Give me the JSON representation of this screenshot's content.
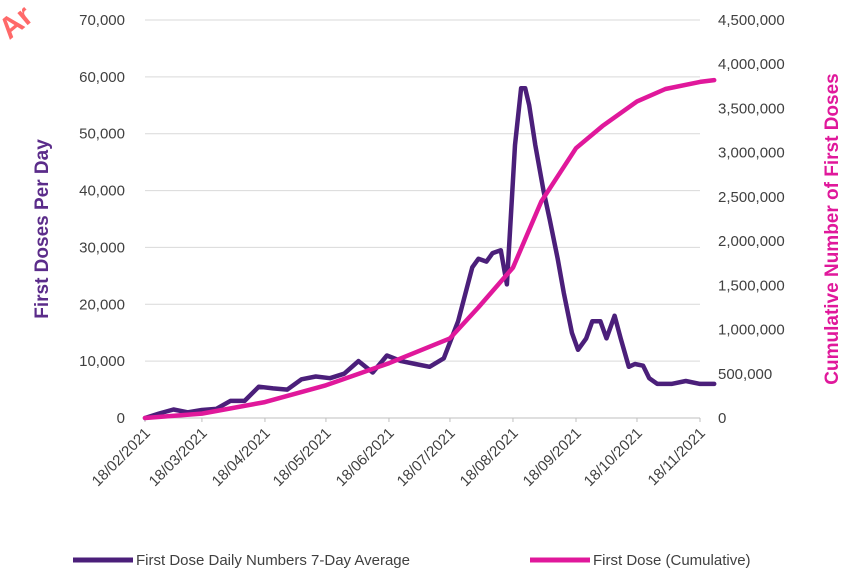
{
  "watermark": "Ar",
  "chart_data": {
    "type": "line",
    "x_tick_labels": [
      "18/02/2021",
      "18/03/2021",
      "18/04/2021",
      "18/05/2021",
      "18/06/2021",
      "18/07/2021",
      "18/08/2021",
      "18/09/2021",
      "18/10/2021",
      "18/11/2021"
    ],
    "x_range": [
      "2021-02-18",
      "2021-11-18"
    ],
    "left_axis": {
      "label": "First Doses Per Day",
      "ylim": [
        0,
        70000
      ],
      "ticks": [
        "0",
        "10,000",
        "20,000",
        "30,000",
        "40,000",
        "50,000",
        "60,000",
        "70,000"
      ],
      "color": "#5b2c8a"
    },
    "right_axis": {
      "label": "Cumulative Number of First Doses",
      "ylim": [
        0,
        4500000
      ],
      "ticks": [
        "0",
        "500,000",
        "1,000,000",
        "1,500,000",
        "2,000,000",
        "2,500,000",
        "3,000,000",
        "3,500,000",
        "4,000,000",
        "4,500,000"
      ],
      "color": "#e0189b"
    },
    "grid": true,
    "legend_position": "bottom",
    "series": [
      {
        "name": "First Dose Daily Numbers 7-Day Average",
        "axis": "left",
        "color": "#4b1f7a",
        "x": [
          "2021-02-18",
          "2021-02-25",
          "2021-03-04",
          "2021-03-11",
          "2021-03-18",
          "2021-03-25",
          "2021-04-01",
          "2021-04-08",
          "2021-04-15",
          "2021-04-22",
          "2021-04-29",
          "2021-05-06",
          "2021-05-13",
          "2021-05-20",
          "2021-05-27",
          "2021-06-03",
          "2021-06-10",
          "2021-06-17",
          "2021-06-24",
          "2021-07-01",
          "2021-07-08",
          "2021-07-15",
          "2021-07-22",
          "2021-07-29",
          "2021-08-01",
          "2021-08-05",
          "2021-08-08",
          "2021-08-12",
          "2021-08-15",
          "2021-08-19",
          "2021-08-22",
          "2021-08-24",
          "2021-08-26",
          "2021-08-29",
          "2021-09-02",
          "2021-09-05",
          "2021-09-09",
          "2021-09-12",
          "2021-09-16",
          "2021-09-19",
          "2021-09-23",
          "2021-09-26",
          "2021-09-30",
          "2021-10-03",
          "2021-10-07",
          "2021-10-10",
          "2021-10-14",
          "2021-10-17",
          "2021-10-21",
          "2021-10-24",
          "2021-10-28",
          "2021-11-04",
          "2021-11-11",
          "2021-11-18",
          "2021-11-25"
        ],
        "values": [
          0,
          800,
          1500,
          1000,
          1400,
          1600,
          3000,
          3000,
          5500,
          5200,
          5000,
          6800,
          7300,
          7000,
          7800,
          10000,
          8000,
          11000,
          10000,
          9500,
          9000,
          10500,
          17000,
          26500,
          28000,
          27500,
          29000,
          29500,
          23500,
          48000,
          58000,
          58000,
          55000,
          48000,
          40000,
          35000,
          28000,
          22000,
          15000,
          12000,
          14000,
          17000,
          17000,
          14000,
          18000,
          14000,
          9000,
          9500,
          9200,
          7000,
          6000,
          6000,
          6500,
          6000,
          6000
        ]
      },
      {
        "name": "First Dose (Cumulative)",
        "axis": "right",
        "color": "#e0189b",
        "x": [
          "2021-02-18",
          "2021-03-18",
          "2021-04-18",
          "2021-05-18",
          "2021-06-18",
          "2021-07-18",
          "2021-08-01",
          "2021-08-18",
          "2021-09-01",
          "2021-09-18",
          "2021-10-01",
          "2021-10-18",
          "2021-11-01",
          "2021-11-18",
          "2021-11-25"
        ],
        "values": [
          0,
          50000,
          180000,
          370000,
          620000,
          900000,
          1250000,
          1700000,
          2450000,
          3050000,
          3300000,
          3580000,
          3720000,
          3800000,
          3820000
        ]
      }
    ]
  }
}
